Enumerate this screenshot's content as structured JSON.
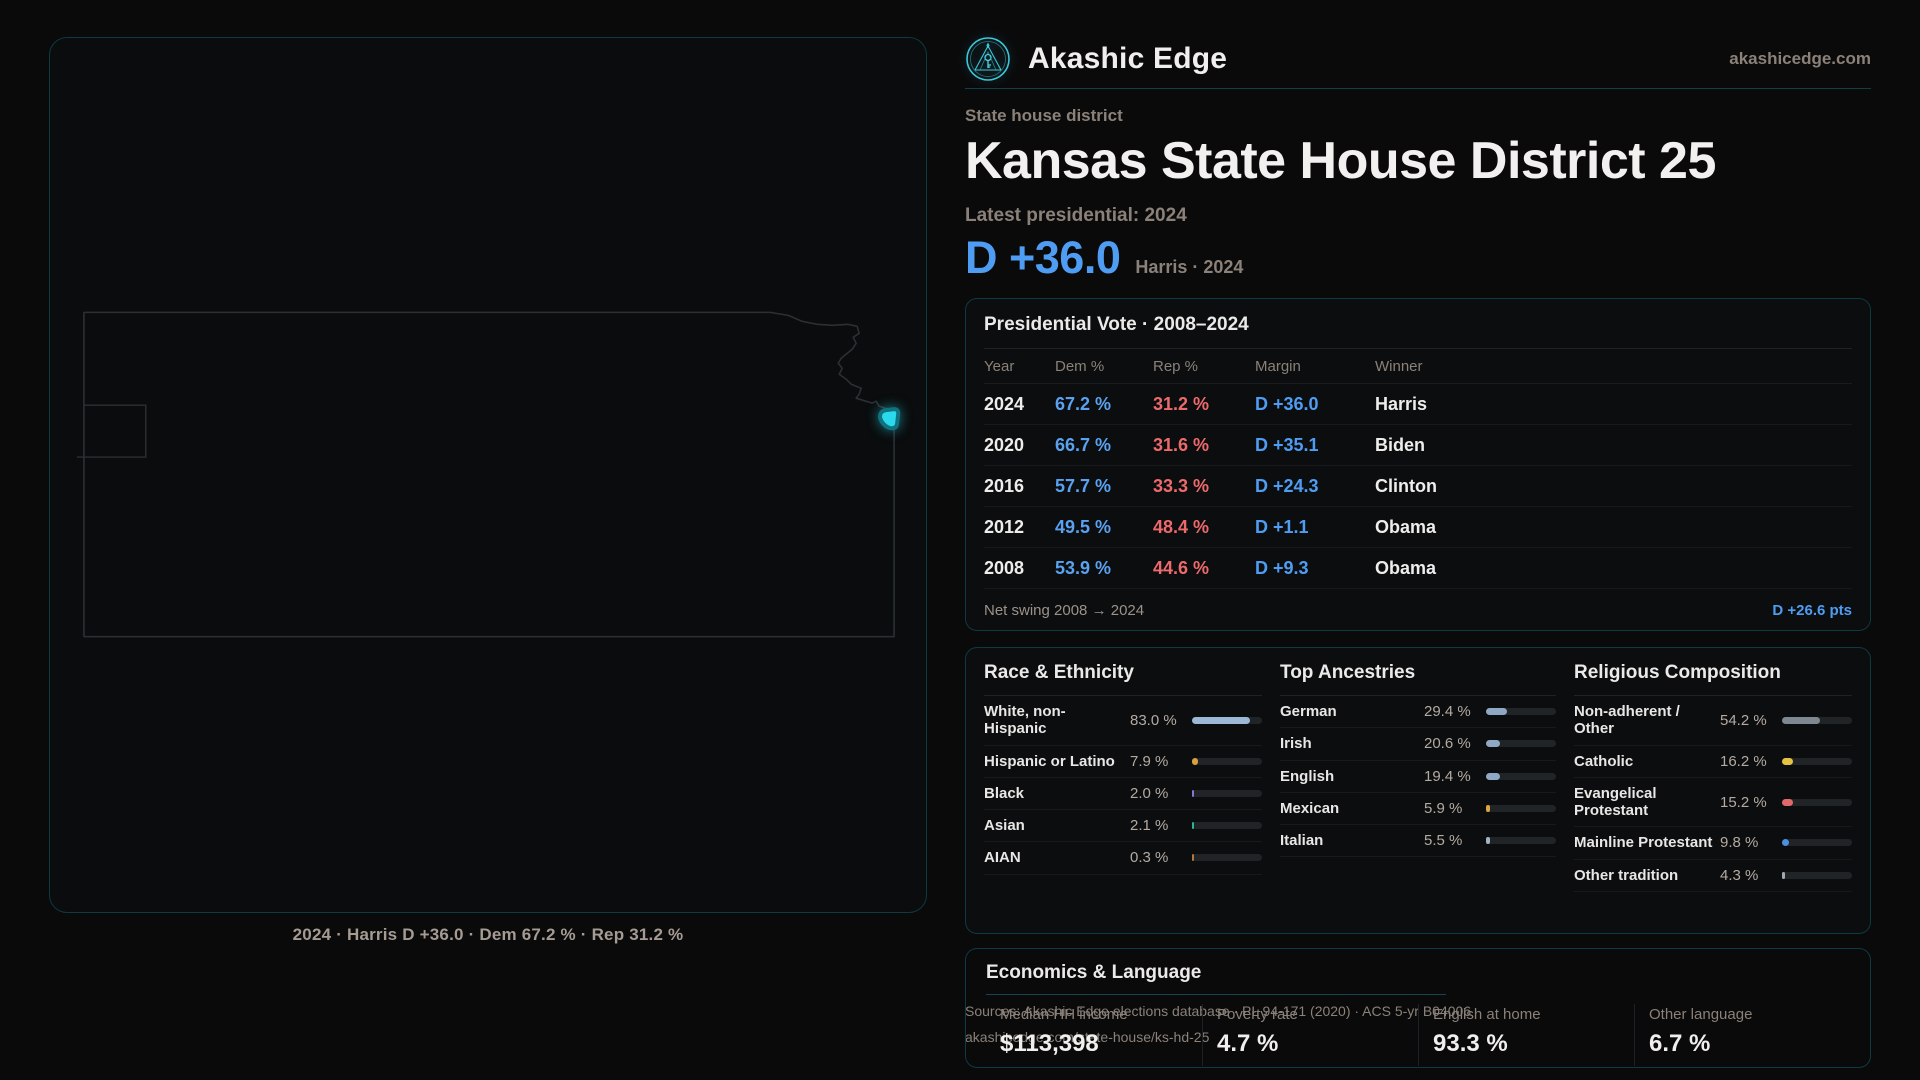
{
  "brand": {
    "name": "Akashic Edge",
    "site": "akashicedge.com"
  },
  "header": {
    "kicker": "State house district",
    "title": "Kansas State House District 25",
    "latest_label": "Latest presidential: 2024",
    "margin_big": "D +36.0",
    "margin_context": "Harris · 2024"
  },
  "map": {
    "caption": "2024 · Harris D +36.0 · Dem 67.2 % · Rep 31.2 %"
  },
  "presidential": {
    "title": "Presidential Vote · 2008–2024",
    "columns": [
      "Year",
      "Dem %",
      "Rep %",
      "Margin",
      "Winner"
    ],
    "rows": [
      {
        "year": "2024",
        "dem": "67.2 %",
        "rep": "31.2 %",
        "margin": "D +36.0",
        "winner": "Harris"
      },
      {
        "year": "2020",
        "dem": "66.7 %",
        "rep": "31.6 %",
        "margin": "D +35.1",
        "winner": "Biden"
      },
      {
        "year": "2016",
        "dem": "57.7 %",
        "rep": "33.3 %",
        "margin": "D +24.3",
        "winner": "Clinton"
      },
      {
        "year": "2012",
        "dem": "49.5 %",
        "rep": "48.4 %",
        "margin": "D +1.1",
        "winner": "Obama"
      },
      {
        "year": "2008",
        "dem": "53.9 %",
        "rep": "44.6 %",
        "margin": "D +9.3",
        "winner": "Obama"
      }
    ],
    "net_swing_label": "Net swing 2008 → 2024",
    "net_swing_value": "D +26.6 pts"
  },
  "demographics": {
    "race": {
      "title": "Race & Ethnicity",
      "rows": [
        {
          "label": "White, non-Hispanic",
          "value": "83.0 %",
          "pct": 83.0,
          "color": "#9db7d6"
        },
        {
          "label": "Hispanic or Latino",
          "value": "7.9 %",
          "pct": 7.9,
          "color": "#dd9f3d"
        },
        {
          "label": "Black",
          "value": "2.0 %",
          "pct": 2.0,
          "color": "#8577d8"
        },
        {
          "label": "Asian",
          "value": "2.1 %",
          "pct": 2.1,
          "color": "#2eb49e"
        },
        {
          "label": "AIAN",
          "value": "0.3 %",
          "pct": 0.3,
          "color": "#b5773b"
        }
      ]
    },
    "ancestries": {
      "title": "Top Ancestries",
      "rows": [
        {
          "label": "German",
          "value": "29.4 %",
          "pct": 29.4,
          "color": "#8fa8c4"
        },
        {
          "label": "Irish",
          "value": "20.6 %",
          "pct": 20.6,
          "color": "#8fa8c4"
        },
        {
          "label": "English",
          "value": "19.4 %",
          "pct": 19.4,
          "color": "#8fa8c4"
        },
        {
          "label": "Mexican",
          "value": "5.9 %",
          "pct": 5.9,
          "color": "#dda43f"
        },
        {
          "label": "Italian",
          "value": "5.5 %",
          "pct": 5.5,
          "color": "#a3b2c2"
        }
      ]
    },
    "religion": {
      "title": "Religious Composition",
      "rows": [
        {
          "label": "Non-adherent / Other",
          "value": "54.2 %",
          "pct": 54.2,
          "color": "#7f8790"
        },
        {
          "label": "Catholic",
          "value": "16.2 %",
          "pct": 16.2,
          "color": "#e3c244"
        },
        {
          "label": "Evangelical Protestant",
          "value": "15.2 %",
          "pct": 15.2,
          "color": "#e2696b"
        },
        {
          "label": "Mainline Protestant",
          "value": "9.8 %",
          "pct": 9.8,
          "color": "#4b90e2"
        },
        {
          "label": "Other tradition",
          "value": "4.3 %",
          "pct": 4.3,
          "color": "#a2abb4"
        }
      ]
    }
  },
  "economics": {
    "title": "Economics & Language",
    "stats": [
      {
        "label": "Median HH income",
        "value": "$113,398"
      },
      {
        "label": "Poverty rate",
        "value": "4.7 %"
      },
      {
        "label": "English at home",
        "value": "93.3 %"
      },
      {
        "label": "Other language",
        "value": "6.7 %"
      }
    ]
  },
  "source": {
    "line1": "Sources: Akashic Edge elections database · PL 94-171 (2020) · ACS 5-yr B04006",
    "line2": "akashicedge.com/state-house/ks-hd-25"
  },
  "colors": {
    "dem_blue": "#4f9df3",
    "rep_red": "#ed6a6c",
    "teal_accent": "#3cc7da",
    "card_border": "#0e3a43"
  }
}
